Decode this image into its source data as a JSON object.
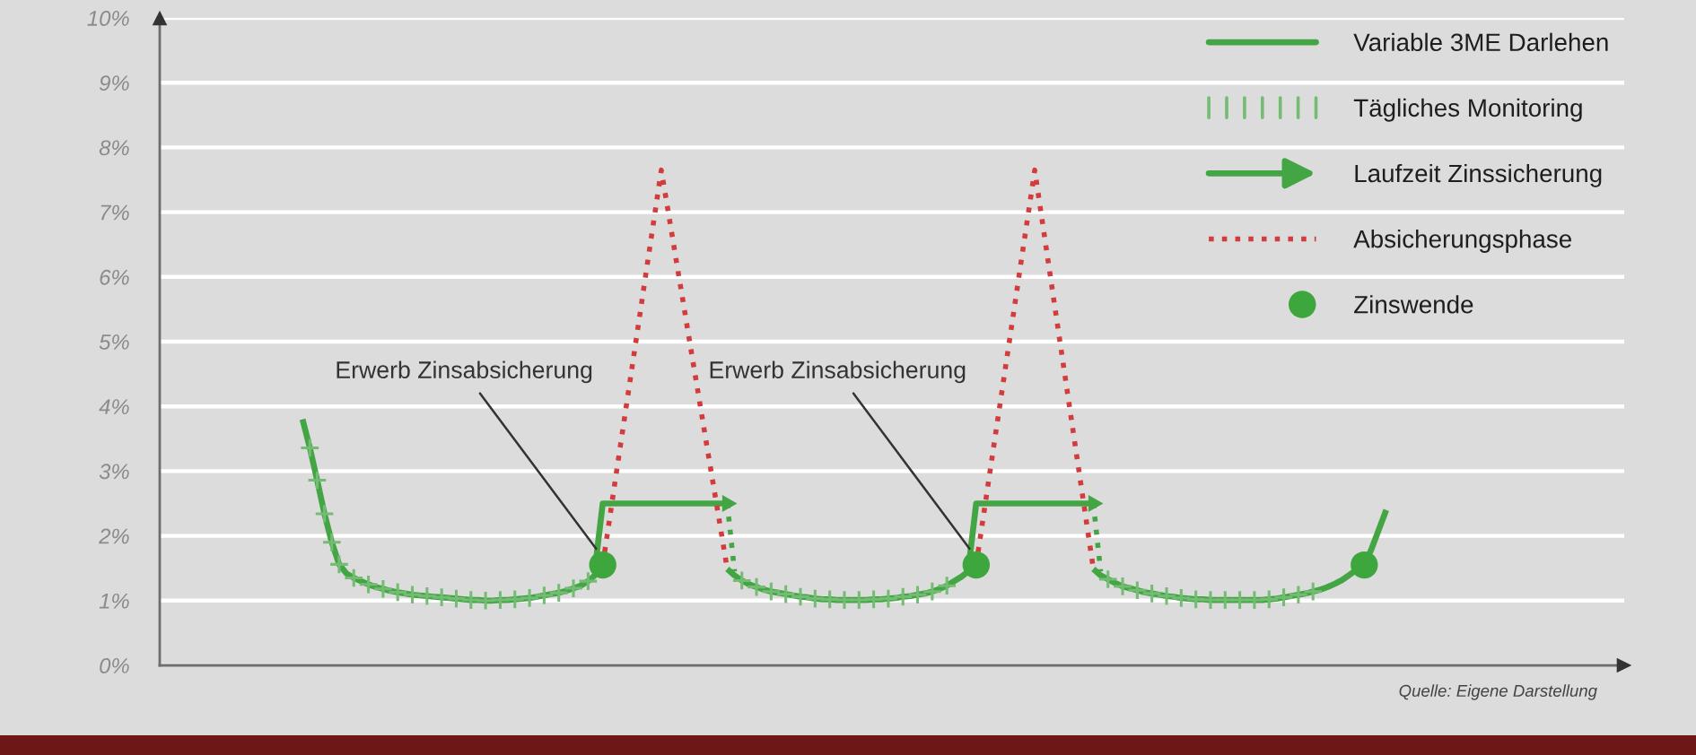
{
  "chart_data": {
    "type": "line",
    "categories": [
      null,
      null,
      null,
      null,
      null,
      null,
      null,
      null,
      null,
      null,
      null,
      null,
      null,
      null,
      null,
      null,
      null,
      null,
      null,
      null,
      null,
      null,
      null,
      null,
      null,
      null,
      null,
      null,
      null,
      null,
      null,
      null,
      null,
      null,
      null,
      null,
      null,
      null,
      null,
      null,
      null,
      null,
      null,
      null,
      null,
      null,
      null,
      null,
      null,
      null,
      null,
      null,
      null,
      null,
      null,
      null,
      null,
      null,
      null,
      null,
      null,
      null,
      null,
      null,
      null,
      null,
      null,
      null,
      null,
      null,
      null,
      null,
      null,
      null,
      null,
      null,
      null,
      null,
      null,
      null,
      null,
      null,
      null,
      null,
      null,
      null,
      null,
      null,
      null,
      null,
      null,
      null,
      null,
      null,
      null,
      null,
      null,
      null,
      null,
      null,
      null,
      null,
      null,
      null,
      null,
      null,
      null,
      null,
      null,
      null,
      null,
      null,
      null,
      null,
      null,
      null,
      null,
      null,
      null,
      null,
      null,
      null,
      null,
      null,
      null,
      null,
      null,
      null,
      null,
      null,
      null,
      null,
      null,
      null,
      null,
      null,
      null,
      null,
      null,
      null,
      null,
      null,
      null,
      null,
      null,
      null,
      null,
      null,
      null,
      null,
      null,
      null,
      null,
      null,
      null,
      null,
      null,
      null,
      null,
      null,
      null,
      null,
      null,
      null,
      null,
      null,
      null,
      null,
      null,
      null,
      null,
      null,
      null,
      null,
      null,
      null,
      null,
      null,
      null,
      null,
      null,
      null,
      null,
      null,
      null,
      null,
      null,
      null,
      null,
      null,
      null,
      null,
      null,
      null,
      null,
      null,
      null,
      null,
      null,
      null
    ],
    "ylim": [
      0,
      10
    ],
    "yticks": [
      {
        "value": 0,
        "label": "0%"
      },
      {
        "value": 1,
        "label": "1%"
      },
      {
        "value": 2,
        "label": "2%"
      },
      {
        "value": 3,
        "label": "3%"
      },
      {
        "value": 4,
        "label": "4%"
      },
      {
        "value": 5,
        "label": "5%"
      },
      {
        "value": 6,
        "label": "6%"
      },
      {
        "value": 7,
        "label": "7%"
      },
      {
        "value": 8,
        "label": "8%"
      },
      {
        "value": 9,
        "label": "9%"
      },
      {
        "value": 10,
        "label": "10%"
      }
    ],
    "tick_labels": "y",
    "grid": "y",
    "legend": "top right",
    "series": [
      {
        "name": "Variable 3ME Darlehen",
        "color": "#44a544",
        "values": [
          null,
          null,
          null,
          null,
          null,
          null,
          null,
          null,
          null,
          null,
          null,
          null,
          null,
          null,
          null,
          null,
          null,
          null,
          null,
          3.8,
          3.36,
          2.86,
          2.34,
          1.9,
          1.56,
          1.42,
          1.35,
          1.3,
          1.25,
          1.21,
          1.18,
          1.15,
          1.13,
          1.11,
          1.09,
          1.08,
          1.07,
          1.06,
          1.05,
          1.04,
          1.03,
          1.02,
          1.01,
          1.01,
          1.0,
          1.0,
          1.01,
          1.01,
          1.02,
          1.03,
          1.04,
          1.06,
          1.08,
          1.1,
          1.12,
          1.15,
          1.19,
          1.23,
          1.3,
          1.4,
          1.55,
          null,
          null,
          null,
          null,
          null,
          null,
          null,
          null,
          null,
          null,
          null,
          null,
          null,
          null,
          null,
          null,
          1.49,
          1.39,
          1.31,
          1.25,
          1.21,
          1.17,
          1.14,
          1.12,
          1.1,
          1.08,
          1.06,
          1.05,
          1.03,
          1.02,
          1.02,
          1.01,
          1.01,
          1.01,
          1.01,
          1.01,
          1.02,
          1.02,
          1.03,
          1.04,
          1.06,
          1.07,
          1.09,
          1.11,
          1.14,
          1.18,
          1.23,
          1.3,
          1.37,
          1.46,
          1.55,
          null,
          null,
          null,
          null,
          null,
          null,
          null,
          null,
          null,
          null,
          null,
          null,
          null,
          null,
          null,
          1.49,
          1.39,
          1.33,
          1.27,
          1.22,
          1.19,
          1.16,
          1.13,
          1.11,
          1.09,
          1.07,
          1.06,
          1.04,
          1.03,
          1.02,
          1.02,
          1.01,
          1.01,
          1.01,
          1.01,
          1.01,
          1.01,
          1.01,
          1.01,
          1.02,
          1.03,
          1.05,
          1.07,
          1.09,
          1.11,
          1.14,
          1.17,
          1.21,
          1.26,
          1.32,
          1.4,
          1.48,
          1.55,
          1.8,
          2.1,
          2.4,
          null,
          null,
          null,
          null,
          null,
          null,
          null,
          null,
          null,
          null,
          null,
          null,
          null,
          null,
          null,
          null,
          null,
          null,
          null,
          null,
          null,
          null,
          null,
          null,
          null,
          null,
          null,
          null,
          null,
          null,
          null,
          null
        ]
      },
      {
        "name": "Tägliches Monitoring",
        "type": "scatter",
        "marker": "cross",
        "color": "#74bb74",
        "values": [
          null,
          null,
          null,
          null,
          null,
          null,
          null,
          null,
          null,
          null,
          null,
          null,
          null,
          null,
          null,
          null,
          null,
          null,
          null,
          null,
          3.36,
          2.86,
          2.34,
          1.9,
          1.56,
          null,
          1.35,
          null,
          1.25,
          null,
          1.18,
          null,
          1.13,
          null,
          1.09,
          null,
          1.07,
          null,
          1.05,
          null,
          1.03,
          null,
          1.01,
          null,
          1.0,
          null,
          1.01,
          null,
          1.02,
          null,
          1.04,
          null,
          1.08,
          null,
          1.12,
          null,
          1.19,
          null,
          1.3,
          null,
          null,
          null,
          null,
          null,
          null,
          null,
          null,
          null,
          null,
          null,
          null,
          null,
          null,
          null,
          null,
          null,
          null,
          null,
          null,
          1.31,
          null,
          1.21,
          null,
          1.14,
          null,
          1.1,
          null,
          1.06,
          null,
          1.03,
          null,
          1.02,
          null,
          1.01,
          null,
          1.01,
          null,
          1.02,
          null,
          1.03,
          null,
          1.06,
          null,
          1.09,
          null,
          1.14,
          null,
          1.23,
          null,
          null,
          null,
          null,
          null,
          null,
          null,
          null,
          null,
          null,
          null,
          null,
          null,
          null,
          null,
          null,
          null,
          null,
          null,
          null,
          null,
          1.33,
          null,
          1.22,
          null,
          1.16,
          null,
          1.11,
          null,
          1.07,
          null,
          1.04,
          null,
          1.02,
          null,
          1.01,
          null,
          1.01,
          null,
          1.01,
          null,
          1.01,
          null,
          1.02,
          null,
          1.05,
          null,
          1.09,
          null,
          1.14,
          null,
          null,
          null,
          null,
          null,
          null,
          null,
          null,
          null,
          null,
          null,
          null,
          null,
          null,
          null,
          null,
          null,
          null,
          null,
          null,
          null,
          null,
          null,
          null,
          null,
          null,
          null,
          null,
          null,
          null,
          null,
          null,
          null,
          null,
          null,
          null,
          null,
          null,
          null,
          null,
          null,
          null
        ]
      },
      {
        "name": "Laufzeit Zinssicherung",
        "type": "line",
        "color": "#44a544",
        "values": [
          null,
          null,
          null,
          null,
          null,
          null,
          null,
          null,
          null,
          null,
          null,
          null,
          null,
          null,
          null,
          null,
          null,
          null,
          null,
          null,
          null,
          null,
          null,
          null,
          null,
          null,
          null,
          null,
          null,
          null,
          null,
          null,
          null,
          null,
          null,
          null,
          null,
          null,
          null,
          null,
          null,
          null,
          null,
          null,
          null,
          null,
          null,
          null,
          null,
          null,
          null,
          null,
          null,
          null,
          null,
          null,
          null,
          null,
          null,
          1.55,
          2.5,
          2.5,
          2.5,
          2.5,
          2.5,
          2.5,
          2.5,
          2.5,
          2.5,
          2.5,
          2.5,
          2.5,
          2.5,
          2.5,
          2.5,
          2.5,
          2.5,
          2.5,
          null,
          null,
          null,
          null,
          null,
          null,
          null,
          null,
          null,
          null,
          null,
          null,
          null,
          null,
          null,
          null,
          null,
          null,
          null,
          null,
          null,
          null,
          null,
          null,
          null,
          null,
          null,
          null,
          null,
          null,
          null,
          null,
          1.55,
          2.5,
          2.5,
          2.5,
          2.5,
          2.5,
          2.5,
          2.5,
          2.5,
          2.5,
          2.5,
          2.5,
          2.5,
          2.5,
          2.5,
          2.5,
          2.5,
          2.5,
          null,
          null,
          null,
          null,
          null,
          null,
          null,
          null,
          null,
          null,
          null,
          null,
          null,
          null,
          null,
          null,
          null,
          null,
          null,
          null,
          null,
          null,
          null,
          null,
          null,
          null,
          null,
          null,
          null,
          null,
          null,
          null,
          null,
          null,
          null,
          null,
          null,
          null,
          null,
          null,
          null,
          null,
          null,
          null,
          null,
          null,
          null,
          null,
          null,
          null,
          null,
          null,
          null,
          null,
          null,
          null,
          null,
          null,
          null,
          null,
          null,
          null,
          null,
          null,
          null,
          null,
          null,
          null,
          null,
          null,
          null,
          null
        ]
      },
      {
        "name": "Absicherungsphase",
        "type": "line",
        "line_style": "dotted",
        "color": "#d23c3c",
        "values": [
          null,
          null,
          null,
          null,
          null,
          null,
          null,
          null,
          null,
          null,
          null,
          null,
          null,
          null,
          null,
          null,
          null,
          null,
          null,
          null,
          null,
          null,
          null,
          null,
          null,
          null,
          null,
          null,
          null,
          null,
          null,
          null,
          null,
          null,
          null,
          null,
          null,
          null,
          null,
          null,
          null,
          null,
          null,
          null,
          null,
          null,
          null,
          null,
          null,
          null,
          null,
          null,
          null,
          null,
          null,
          null,
          null,
          null,
          null,
          null,
          1.55,
          2.31,
          3.08,
          3.84,
          4.6,
          5.36,
          6.13,
          6.89,
          7.65,
          6.97,
          6.28,
          5.6,
          4.91,
          4.23,
          3.54,
          2.86,
          2.18,
          1.49,
          null,
          null,
          null,
          null,
          null,
          null,
          null,
          null,
          null,
          null,
          null,
          null,
          null,
          null,
          null,
          null,
          null,
          null,
          null,
          null,
          null,
          null,
          null,
          null,
          null,
          null,
          null,
          null,
          null,
          null,
          null,
          null,
          null,
          1.55,
          2.31,
          3.08,
          3.84,
          4.6,
          5.36,
          6.13,
          6.89,
          7.65,
          6.88,
          6.11,
          5.34,
          4.57,
          3.8,
          3.03,
          2.26,
          1.49,
          null,
          null,
          null,
          null,
          null,
          null,
          null,
          null,
          null,
          null,
          null,
          null,
          null,
          null,
          null,
          null,
          null,
          null,
          null,
          null,
          null,
          null,
          null,
          null,
          null,
          null,
          null,
          null,
          null,
          null,
          null,
          null,
          null,
          null,
          null,
          null,
          null,
          null,
          null,
          null,
          null,
          null,
          null,
          null,
          null,
          null,
          null,
          null,
          null,
          null,
          null,
          null,
          null,
          null,
          null,
          null,
          null,
          null,
          null,
          null,
          null,
          null,
          null,
          null,
          null,
          null,
          null,
          null,
          null,
          null,
          null,
          null
        ]
      },
      {
        "name": "Zinswende",
        "type": "scatter",
        "marker": "circle",
        "color": "#3da73d",
        "values": [
          null,
          null,
          null,
          null,
          null,
          null,
          null,
          null,
          null,
          null,
          null,
          null,
          null,
          null,
          null,
          null,
          null,
          null,
          null,
          null,
          null,
          null,
          null,
          null,
          null,
          null,
          null,
          null,
          null,
          null,
          null,
          null,
          null,
          null,
          null,
          null,
          null,
          null,
          null,
          null,
          null,
          null,
          null,
          null,
          null,
          null,
          null,
          null,
          null,
          null,
          null,
          null,
          null,
          null,
          null,
          null,
          null,
          null,
          null,
          null,
          1.55,
          null,
          null,
          null,
          null,
          null,
          null,
          null,
          null,
          null,
          null,
          null,
          null,
          null,
          null,
          null,
          null,
          null,
          null,
          null,
          null,
          null,
          null,
          null,
          null,
          null,
          null,
          null,
          null,
          null,
          null,
          null,
          null,
          null,
          null,
          null,
          null,
          null,
          null,
          null,
          null,
          null,
          null,
          null,
          null,
          null,
          null,
          null,
          null,
          null,
          null,
          1.55,
          null,
          null,
          null,
          null,
          null,
          null,
          null,
          null,
          null,
          null,
          null,
          null,
          null,
          null,
          null,
          null,
          null,
          null,
          null,
          null,
          null,
          null,
          null,
          null,
          null,
          null,
          null,
          null,
          null,
          null,
          null,
          null,
          null,
          null,
          null,
          null,
          null,
          null,
          null,
          null,
          null,
          null,
          null,
          null,
          null,
          null,
          null,
          null,
          null,
          null,
          null,
          null,
          1.55,
          null,
          null,
          null,
          null,
          null,
          null,
          null,
          null,
          null,
          null,
          null,
          null,
          null,
          null,
          null,
          null,
          null,
          null,
          null,
          null,
          null,
          null,
          null,
          null,
          null,
          null,
          null,
          null,
          null,
          null,
          null,
          null,
          null,
          null,
          null
        ]
      },
      {
        "type": "line",
        "line_style": "dotted",
        "color": "#44a544",
        "values": [
          null,
          null,
          null,
          null,
          null,
          null,
          null,
          null,
          null,
          null,
          null,
          null,
          null,
          null,
          null,
          null,
          null,
          null,
          null,
          null,
          null,
          null,
          null,
          null,
          null,
          null,
          null,
          null,
          null,
          null,
          null,
          null,
          null,
          null,
          null,
          null,
          null,
          null,
          null,
          null,
          null,
          null,
          null,
          null,
          null,
          null,
          null,
          null,
          null,
          null,
          null,
          null,
          null,
          null,
          null,
          null,
          null,
          null,
          null,
          null,
          null,
          null,
          null,
          null,
          null,
          null,
          null,
          null,
          null,
          null,
          null,
          null,
          null,
          null,
          null,
          null,
          null,
          2.5,
          1.45,
          null,
          null,
          null,
          null,
          null,
          null,
          null,
          null,
          null,
          null,
          null,
          null,
          null,
          null,
          null,
          null,
          null,
          null,
          null,
          null,
          null,
          null,
          null,
          null,
          null,
          null,
          null,
          null,
          null,
          null,
          null,
          null,
          null,
          null,
          null,
          null,
          null,
          null,
          null,
          null,
          null,
          null,
          null,
          null,
          null,
          null,
          null,
          null,
          2.5,
          1.45,
          null,
          null,
          null,
          null,
          null,
          null,
          null,
          null,
          null,
          null,
          null,
          null,
          null,
          null,
          null,
          null,
          null,
          null,
          null,
          null,
          null,
          null,
          null,
          null,
          null,
          null,
          null,
          null,
          null,
          null,
          null,
          null,
          null,
          null,
          null,
          null,
          null,
          null,
          null,
          null,
          null,
          null,
          null,
          null,
          null,
          null,
          null,
          null,
          null,
          null,
          null,
          null,
          null,
          null,
          null,
          null,
          null,
          null,
          null,
          null,
          null,
          null,
          null,
          null,
          null,
          null,
          null,
          null,
          null,
          null,
          null
        ]
      }
    ],
    "annotations": [
      "Erwerb Zinsabsicherung",
      "Erwerb Zinsabsicherung",
      "Quelle: Eigene Darstellung"
    ]
  }
}
